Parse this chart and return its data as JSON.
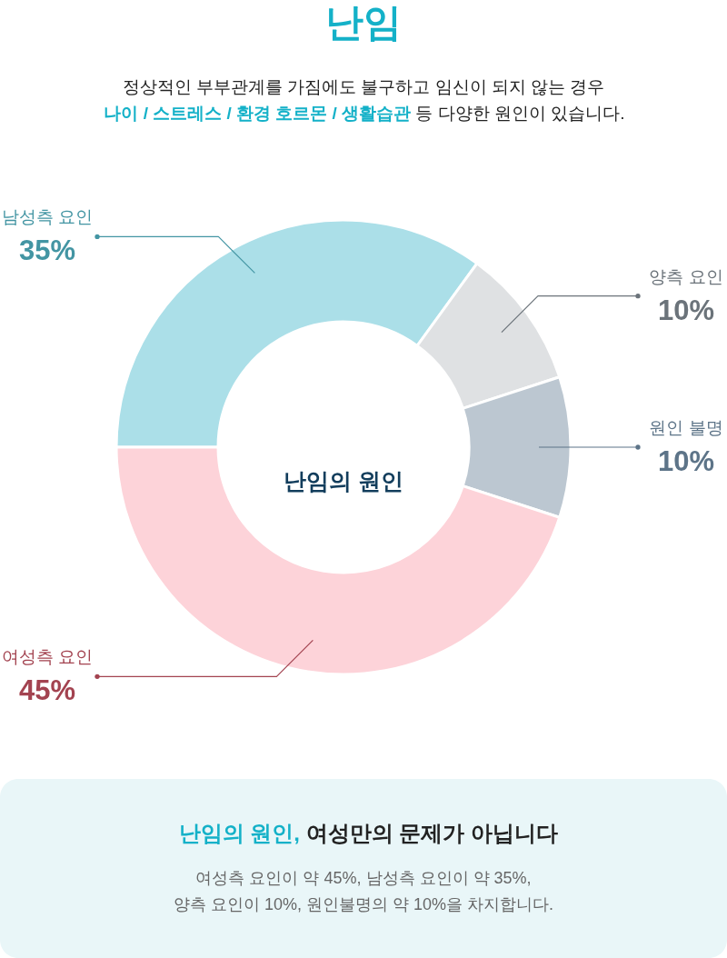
{
  "chart_data": {
    "type": "donut",
    "title": "난임",
    "subtitle": [
      "정상적인 부부관계를 가짐에도 불구하고 임신이 되지 않는 경우",
      "나이 / 스트레스 / 환경 호르몬 / 생활습관",
      "등 다양한 원인이 있습니다."
    ],
    "categories": [
      "남성측 요인",
      "양측 요인",
      "원인 불명",
      "여성측 요인"
    ],
    "values": [
      35,
      10,
      10,
      45
    ],
    "colors": [
      "#abdfe8",
      "#dfe1e3",
      "#bcc7d1",
      "#fdd3d9"
    ],
    "value_labels": [
      "35%",
      "10%",
      "10%",
      "45%"
    ],
    "annotations": [
      "난임의 원인",
      "난임의 원인,",
      "여성만의 문제가 아닙니다",
      "여성측 요인이 약 45%, 남성측 요인이 약 35%,",
      "양측 요인이 10%, 원인불명의 약 10%을 차지합니다."
    ]
  }
}
